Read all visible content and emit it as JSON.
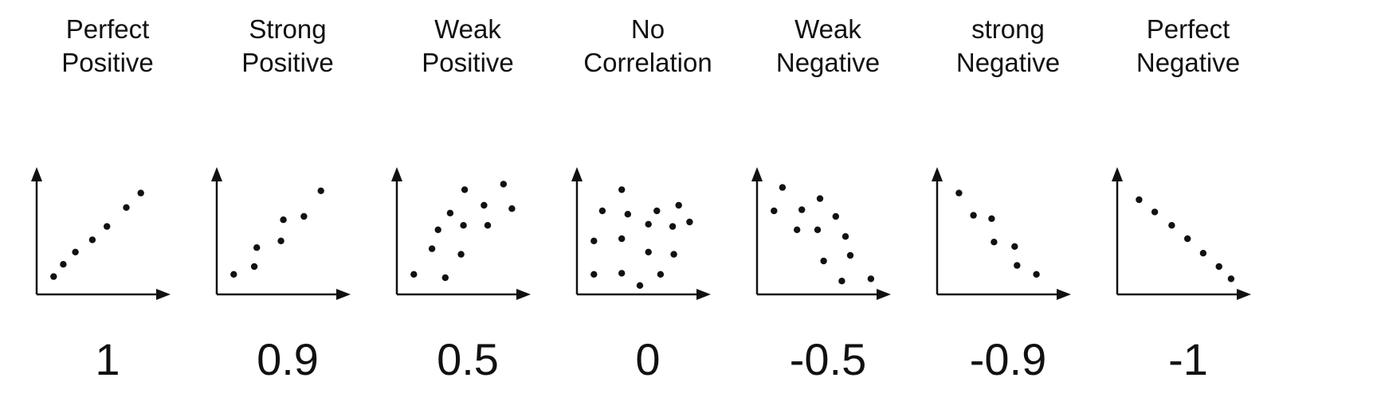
{
  "panels": [
    {
      "title_line1": "Perfect",
      "title_line2": "Positive",
      "value": "1",
      "points": [
        [
          0.14,
          0.16
        ],
        [
          0.22,
          0.27
        ],
        [
          0.32,
          0.38
        ],
        [
          0.46,
          0.49
        ],
        [
          0.58,
          0.61
        ],
        [
          0.74,
          0.78
        ],
        [
          0.86,
          0.91
        ]
      ]
    },
    {
      "title_line1": "Strong",
      "title_line2": "Positive",
      "value": "0.9",
      "points": [
        [
          0.14,
          0.18
        ],
        [
          0.31,
          0.25
        ],
        [
          0.33,
          0.42
        ],
        [
          0.53,
          0.48
        ],
        [
          0.55,
          0.67
        ],
        [
          0.72,
          0.7
        ],
        [
          0.86,
          0.93
        ]
      ]
    },
    {
      "title_line1": "Weak",
      "title_line2": "Positive",
      "value": "0.5",
      "points": [
        [
          0.14,
          0.18
        ],
        [
          0.4,
          0.15
        ],
        [
          0.29,
          0.41
        ],
        [
          0.53,
          0.36
        ],
        [
          0.34,
          0.58
        ],
        [
          0.55,
          0.62
        ],
        [
          0.44,
          0.73
        ],
        [
          0.56,
          0.94
        ],
        [
          0.72,
          0.8
        ],
        [
          0.75,
          0.62
        ],
        [
          0.88,
          0.99
        ],
        [
          0.95,
          0.77
        ]
      ]
    },
    {
      "title_line1": "No",
      "title_line2": "Correlation",
      "value": "0",
      "points": [
        [
          0.14,
          0.18
        ],
        [
          0.37,
          0.19
        ],
        [
          0.69,
          0.18
        ],
        [
          0.52,
          0.08
        ],
        [
          0.14,
          0.48
        ],
        [
          0.37,
          0.5
        ],
        [
          0.59,
          0.38
        ],
        [
          0.8,
          0.36
        ],
        [
          0.59,
          0.63
        ],
        [
          0.79,
          0.61
        ],
        [
          0.21,
          0.75
        ],
        [
          0.42,
          0.72
        ],
        [
          0.66,
          0.75
        ],
        [
          0.93,
          0.65
        ],
        [
          0.37,
          0.94
        ],
        [
          0.84,
          0.8
        ]
      ]
    },
    {
      "title_line1": "Weak",
      "title_line2": "Negative",
      "value": "-0.5",
      "points": [
        [
          0.14,
          0.75
        ],
        [
          0.21,
          0.96
        ],
        [
          0.33,
          0.58
        ],
        [
          0.37,
          0.76
        ],
        [
          0.5,
          0.58
        ],
        [
          0.52,
          0.86
        ],
        [
          0.65,
          0.7
        ],
        [
          0.73,
          0.52
        ],
        [
          0.77,
          0.35
        ],
        [
          0.55,
          0.3
        ],
        [
          0.7,
          0.12
        ],
        [
          0.94,
          0.14
        ]
      ]
    },
    {
      "title_line1": "strong",
      "title_line2": "Negative",
      "value": "-0.9",
      "points": [
        [
          0.18,
          0.91
        ],
        [
          0.3,
          0.71
        ],
        [
          0.45,
          0.68
        ],
        [
          0.47,
          0.47
        ],
        [
          0.64,
          0.43
        ],
        [
          0.66,
          0.26
        ],
        [
          0.82,
          0.18
        ]
      ]
    },
    {
      "title_line1": "Perfect",
      "title_line2": "Negative",
      "value": "-1",
      "points": [
        [
          0.18,
          0.85
        ],
        [
          0.31,
          0.74
        ],
        [
          0.45,
          0.62
        ],
        [
          0.58,
          0.5
        ],
        [
          0.71,
          0.37
        ],
        [
          0.84,
          0.25
        ],
        [
          0.94,
          0.14
        ]
      ]
    }
  ]
}
